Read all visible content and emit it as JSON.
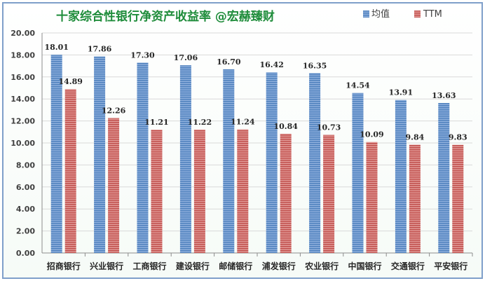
{
  "chart_data": {
    "type": "bar",
    "title": "十家综合性银行净资产收益率   @宏赫臻财",
    "categories": [
      "招商银行",
      "兴业银行",
      "工商银行",
      "建设银行",
      "邮储银行",
      "浦发银行",
      "农业银行",
      "中国银行",
      "交通银行",
      "平安银行"
    ],
    "series": [
      {
        "name": "均值",
        "color": "#4f81bd",
        "values": [
          18.01,
          17.86,
          17.3,
          17.06,
          16.7,
          16.42,
          16.35,
          14.54,
          13.91,
          13.63
        ]
      },
      {
        "name": "TTM",
        "color": "#c0504d",
        "values": [
          14.89,
          12.26,
          11.21,
          11.22,
          11.24,
          10.84,
          10.73,
          10.09,
          9.84,
          9.83
        ]
      }
    ],
    "yticks": [
      "0.00",
      "2.00",
      "4.00",
      "6.00",
      "8.00",
      "10.00",
      "12.00",
      "14.00",
      "16.00",
      "18.00",
      "20.00"
    ],
    "ylim": [
      0,
      20
    ],
    "legend": "top-right",
    "grid": true
  }
}
